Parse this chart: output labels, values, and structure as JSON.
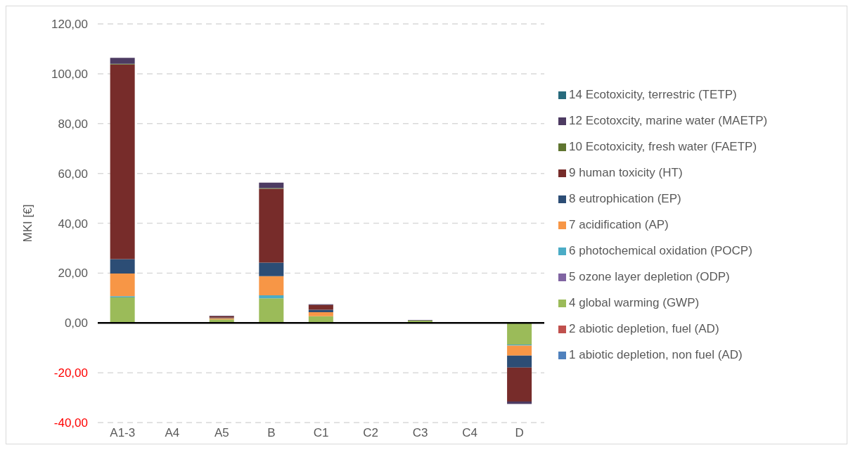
{
  "chart_data": {
    "type": "bar",
    "ylabel": "MKI [€]",
    "stacked": true,
    "categories": [
      "A1-3",
      "A4",
      "A5",
      "B",
      "C1",
      "C2",
      "C3",
      "C4",
      "D"
    ],
    "series": [
      {
        "name": "1 abiotic depletion, non fuel (AD)",
        "color": "#4f81bd",
        "values": [
          0,
          0,
          0,
          0,
          0,
          0,
          0,
          0,
          0
        ]
      },
      {
        "name": "2 abiotic depletion, fuel (AD)",
        "color": "#c0504d",
        "values": [
          0,
          0,
          0,
          0,
          0,
          0,
          0,
          0,
          0
        ]
      },
      {
        "name": "4 global warming (GWP)",
        "color": "#9bbb59",
        "values": [
          10.2,
          0,
          1.4,
          9.9,
          2.7,
          0,
          1.0,
          0,
          -8.7
        ]
      },
      {
        "name": "5 ozone layer depletion (ODP)",
        "color": "#8064a2",
        "values": [
          0,
          0,
          0,
          0,
          0,
          0,
          0,
          0,
          0
        ]
      },
      {
        "name": "6 photochemical oxidation (POCP)",
        "color": "#4bacc6",
        "values": [
          0.5,
          0,
          0,
          1.2,
          null,
          0,
          0,
          0,
          -0.4
        ]
      },
      {
        "name": "7 acidification (AP)",
        "color": "#f79646",
        "values": [
          9.1,
          0,
          0.5,
          7.7,
          1.6,
          0,
          0,
          0,
          -4.0
        ]
      },
      {
        "name": "8 eutrophication (EP)",
        "color": "#2c4d75",
        "values": [
          5.8,
          0,
          0.2,
          5.4,
          1.0,
          0,
          null,
          0,
          -4.8
        ]
      },
      {
        "name": "9 human toxicity (HT)",
        "color": "#772c2a",
        "values": [
          78.1,
          0,
          0.6,
          29.6,
          1.9,
          0,
          null,
          0,
          -13.6
        ]
      },
      {
        "name": "10 Ecotoxicity, fresh water (FAETP)",
        "color": "#5f7530",
        "values": [
          0.3,
          0,
          0,
          0.3,
          0,
          0,
          0,
          0,
          0
        ]
      },
      {
        "name": "12 Ecotoxcity, marine water (MAETP)",
        "color": "#4d3b62",
        "values": [
          2.4,
          0,
          0.2,
          2.2,
          0.3,
          0,
          0.2,
          0,
          -1.0
        ]
      },
      {
        "name": "14 Ecotoxicity, terrestric (TETP)",
        "color": "#276a7c",
        "values": [
          0,
          0,
          0,
          0,
          0,
          0,
          0,
          0,
          0
        ]
      }
    ],
    "ylim": [
      -40,
      120
    ],
    "yticks": [
      {
        "value": -40,
        "label": "-40,00"
      },
      {
        "value": -20,
        "label": "-20,00"
      },
      {
        "value": 0,
        "label": "0,00"
      },
      {
        "value": 20,
        "label": "20,00"
      },
      {
        "value": 40,
        "label": "40,00"
      },
      {
        "value": 60,
        "label": "60,00"
      },
      {
        "value": 80,
        "label": "80,00"
      },
      {
        "value": 100,
        "label": "100,00"
      },
      {
        "value": 120,
        "label": "120,00"
      }
    ],
    "grid": "y",
    "legend": "right"
  }
}
